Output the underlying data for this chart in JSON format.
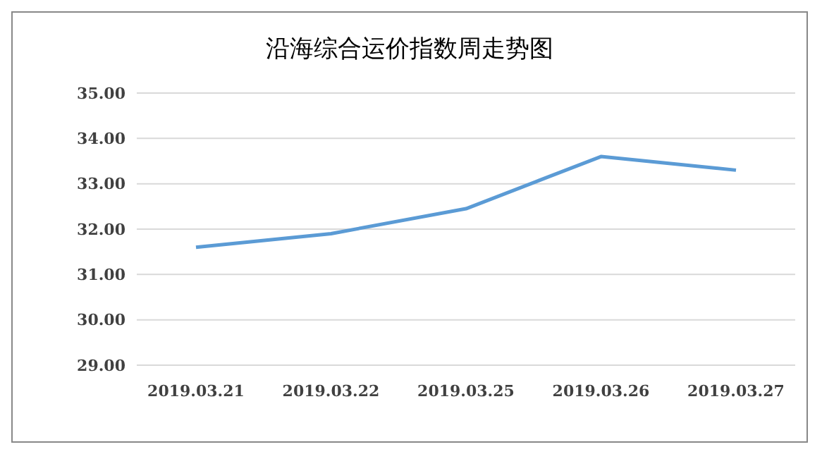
{
  "chart_data": {
    "type": "line",
    "title": "沿海综合运价指数周走势图",
    "categories": [
      "2019.03.21",
      "2019.03.22",
      "2019.03.25",
      "2019.03.26",
      "2019.03.27"
    ],
    "series": [
      {
        "color": "#5b9bd5",
        "values": [
          31.6,
          31.9,
          32.45,
          33.6,
          33.3
        ]
      }
    ],
    "ylim": [
      29,
      35
    ],
    "yticks": [
      {
        "value": 29,
        "label": "29.00"
      },
      {
        "value": 30,
        "label": "30.00"
      },
      {
        "value": 31,
        "label": "31.00"
      },
      {
        "value": 32,
        "label": "32.00"
      },
      {
        "value": 33,
        "label": "33.00"
      },
      {
        "value": 34,
        "label": "34.00"
      },
      {
        "value": 35,
        "label": "35.00"
      }
    ],
    "grid": "y",
    "legend": false,
    "marker": "none",
    "line_style": "solid"
  }
}
